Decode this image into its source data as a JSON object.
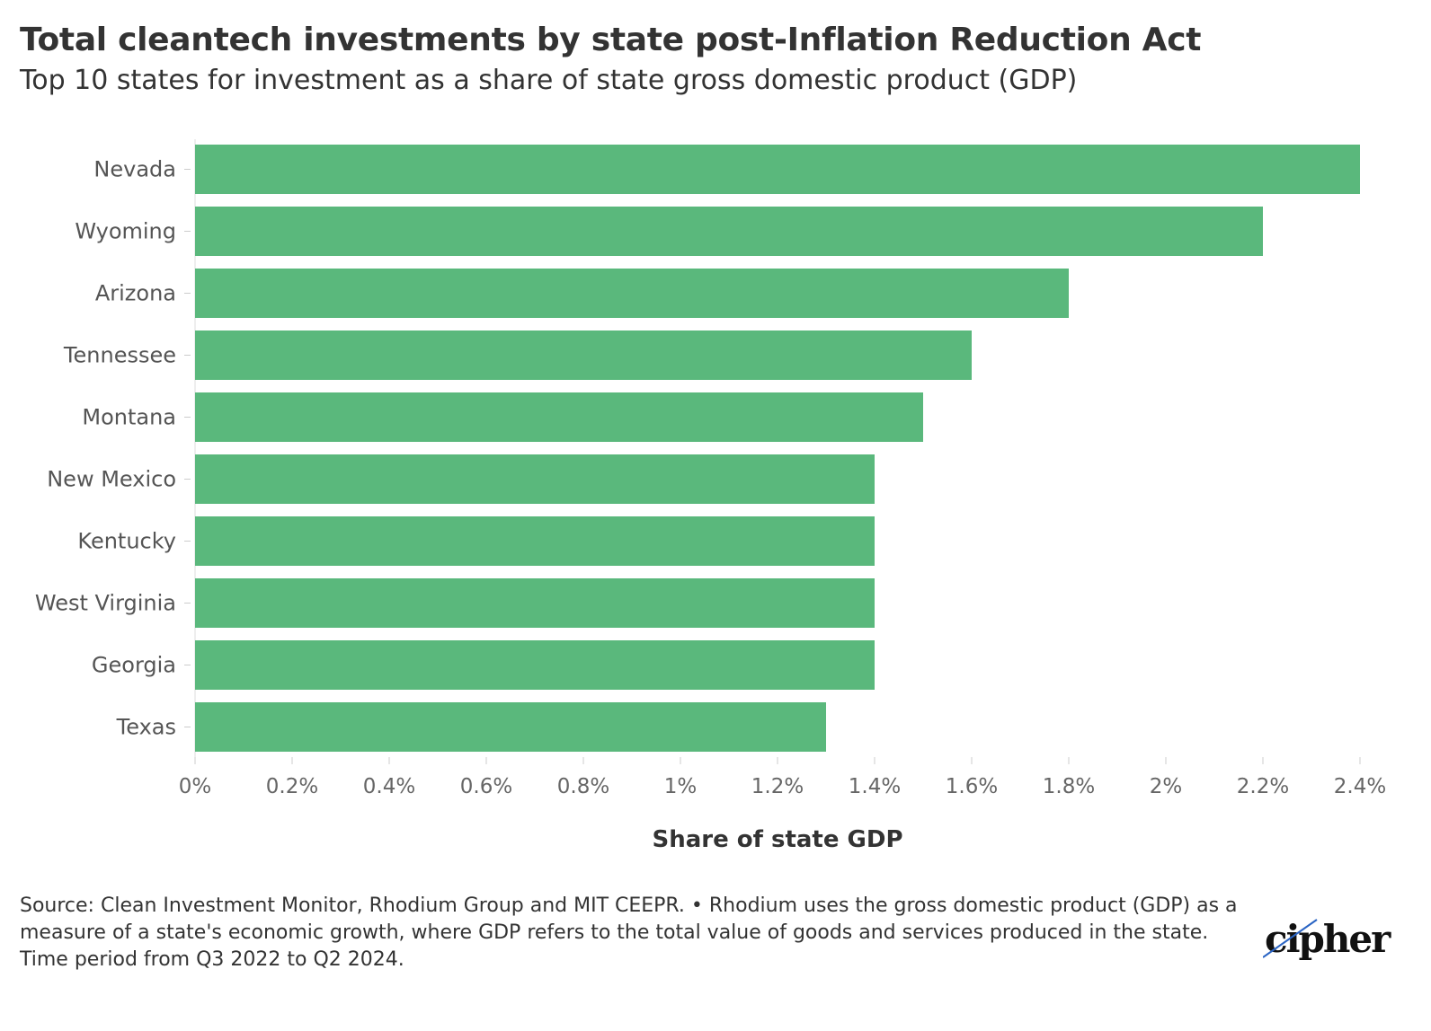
{
  "title": "Total cleantech investments by state post-Inflation Reduction Act",
  "subtitle": "Top 10 states for investment as a share of state gross domestic product (GDP)",
  "chart_data": {
    "type": "bar",
    "orientation": "horizontal",
    "categories": [
      "Nevada",
      "Wyoming",
      "Arizona",
      "Tennessee",
      "Montana",
      "New Mexico",
      "Kentucky",
      "West Virginia",
      "Georgia",
      "Texas"
    ],
    "values": [
      2.4,
      2.2,
      1.8,
      1.6,
      1.5,
      1.4,
      1.4,
      1.4,
      1.4,
      1.3
    ],
    "xlabel": "Share of state GDP",
    "xlim": [
      0,
      2.4
    ],
    "xticks": [
      0,
      0.2,
      0.4,
      0.6,
      0.8,
      1,
      1.2,
      1.4,
      1.6,
      1.8,
      2,
      2.2,
      2.4
    ],
    "xtick_labels": [
      "0%",
      "0.2%",
      "0.4%",
      "0.6%",
      "0.8%",
      "1%",
      "1.2%",
      "1.4%",
      "1.6%",
      "1.8%",
      "2%",
      "2.2%",
      "2.4%"
    ],
    "bar_color": "#5ab87c",
    "grid": false
  },
  "notes": {
    "source": "Source: Clean Investment Monitor, Rhodium Group and MIT CEEPR. • Rhodium uses the gross domestic product (GDP) as a measure of a state's economic growth, where GDP refers to the total value of goods and services produced in the state.",
    "period": "Time period from Q3 2022 to Q2 2024."
  },
  "logo": {
    "text": "cipher"
  }
}
